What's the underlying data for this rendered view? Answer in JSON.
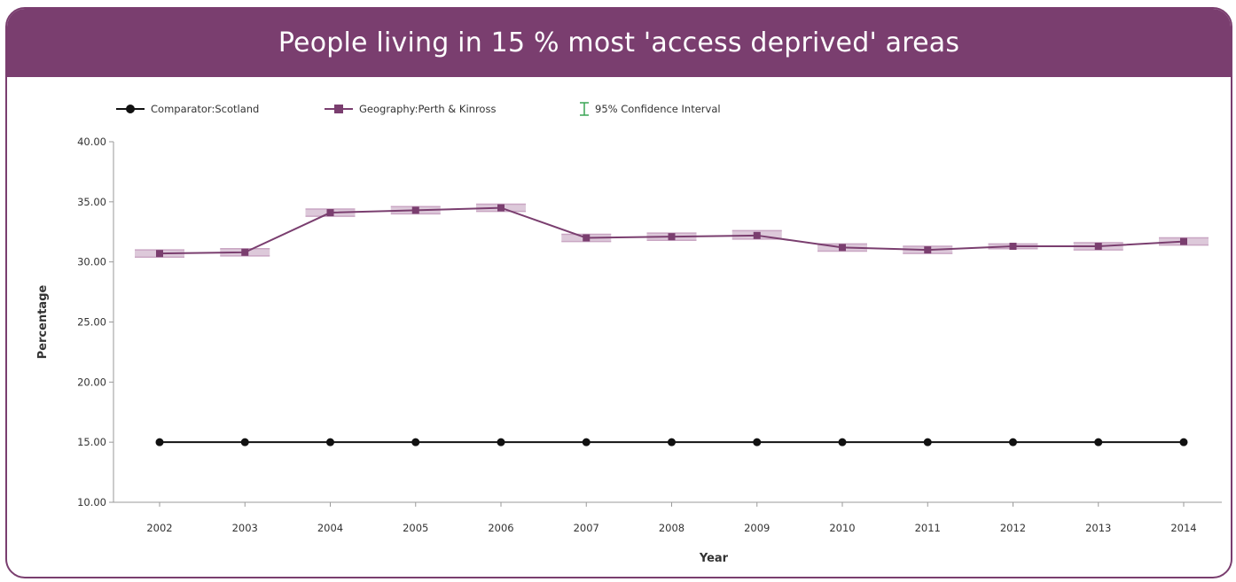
{
  "header": {
    "title": "People living in 15 %  most 'access deprived' areas"
  },
  "colors": {
    "header_bg": "#7a3e6f",
    "comparator": "#111111",
    "geography": "#7a3e6f",
    "confidence_interval": "#3aa655",
    "ci_fill": "#d7bfd3"
  },
  "legend": {
    "items": [
      {
        "label": "Comparator:Scotland",
        "icon": "circle-marker"
      },
      {
        "label": "Geography:Perth & Kinross",
        "icon": "square-marker"
      },
      {
        "label": "95% Confidence Interval",
        "icon": "error-bar-icon"
      }
    ],
    "placement": "top-left"
  },
  "chart_data": {
    "type": "line",
    "title": "",
    "xlabel": "Year",
    "ylabel": "Percentage",
    "ylim": [
      10,
      40
    ],
    "y_ticks": [
      "10.00",
      "15.00",
      "20.00",
      "25.00",
      "30.00",
      "35.00",
      "40.00"
    ],
    "grid": false,
    "categories": [
      "2002",
      "2003",
      "2004",
      "2005",
      "2006",
      "2007",
      "2008",
      "2009",
      "2010",
      "2011",
      "2012",
      "2013",
      "2014"
    ],
    "series": [
      {
        "name": "Comparator:Scotland",
        "marker": "circle",
        "values": [
          15,
          15,
          15,
          15,
          15,
          15,
          15,
          15,
          15,
          15,
          15,
          15,
          15
        ]
      },
      {
        "name": "Geography:Perth & Kinross",
        "marker": "square",
        "values": [
          30.7,
          30.8,
          34.1,
          34.3,
          34.5,
          32.0,
          32.1,
          32.2,
          31.2,
          31.0,
          31.3,
          31.3,
          31.7
        ],
        "ci_low": [
          30.4,
          30.5,
          33.8,
          34.0,
          34.2,
          31.7,
          31.8,
          31.9,
          30.9,
          30.7,
          31.1,
          31.0,
          31.4
        ],
        "ci_high": [
          31.0,
          31.1,
          34.4,
          34.6,
          34.8,
          32.3,
          32.4,
          32.6,
          31.5,
          31.3,
          31.5,
          31.6,
          32.0
        ]
      }
    ]
  }
}
